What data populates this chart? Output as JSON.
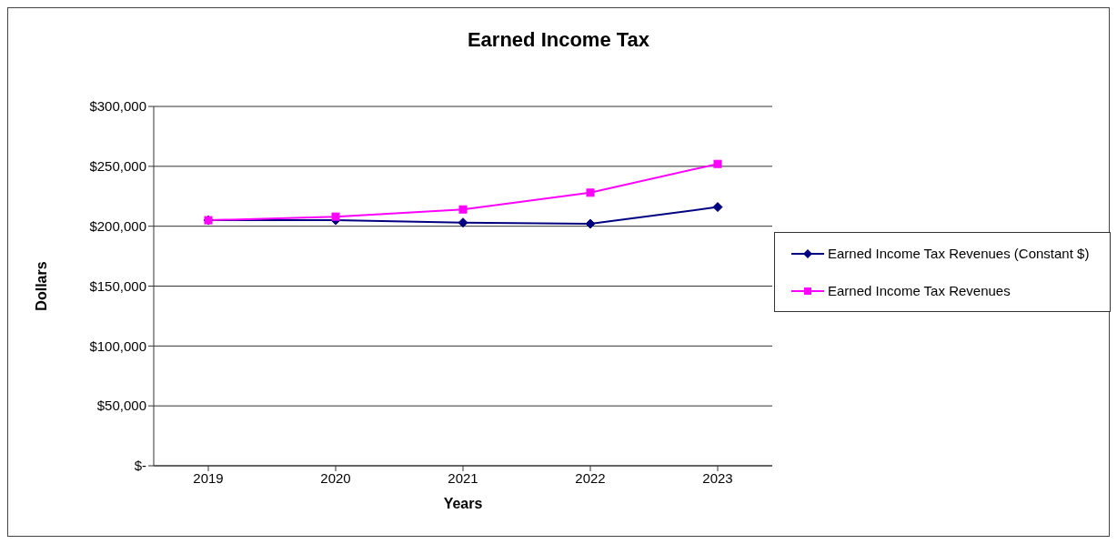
{
  "chart_data": {
    "type": "line",
    "title": "Earned Income Tax",
    "xlabel": "Years",
    "ylabel": "Dollars",
    "categories": [
      "2019",
      "2020",
      "2021",
      "2022",
      "2023"
    ],
    "series": [
      {
        "name": "Earned Income Tax Revenues (Constant $)",
        "color": "#000080",
        "marker": "diamond",
        "values": [
          205000,
          205000,
          203000,
          202000,
          216000
        ]
      },
      {
        "name": "Earned Income Tax Revenues",
        "color": "#ff00ff",
        "marker": "square",
        "values": [
          205000,
          208000,
          214000,
          228000,
          252000
        ]
      }
    ],
    "ylim": [
      0,
      300000
    ],
    "yticks": [
      {
        "value": 0,
        "label": "$-"
      },
      {
        "value": 50000,
        "label": "$50,000"
      },
      {
        "value": 100000,
        "label": "$100,000"
      },
      {
        "value": 150000,
        "label": "$150,000"
      },
      {
        "value": 200000,
        "label": "$200,000"
      },
      {
        "value": 250000,
        "label": "$250,000"
      },
      {
        "value": 300000,
        "label": "$300,000"
      }
    ],
    "grid": "y",
    "legend": "right"
  }
}
